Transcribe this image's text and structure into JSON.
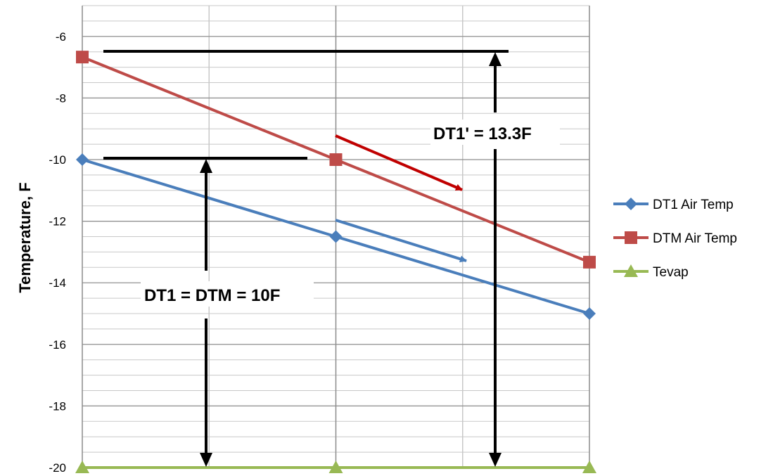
{
  "chart_data": {
    "type": "line",
    "ylabel": "Temperature, F",
    "xlabel": "",
    "title": "",
    "ylim": [
      -20,
      -5
    ],
    "y_ticks": [
      -6,
      -8,
      -10,
      -12,
      -14,
      -16,
      -18,
      -20
    ],
    "x": [
      0,
      1,
      2
    ],
    "grid": true,
    "legend_position": "right",
    "series": [
      {
        "name": "DT1 Air Temp",
        "values": [
          -10,
          -12.5,
          -15
        ],
        "color": "#4a7ebb",
        "marker": "diamond"
      },
      {
        "name": "DTM Air Temp",
        "values": [
          -6.67,
          -10,
          -13.33
        ],
        "color": "#be4b48",
        "marker": "square"
      },
      {
        "name": "Tevap",
        "values": [
          -20,
          -20,
          -20
        ],
        "color": "#98b954",
        "marker": "triangle"
      }
    ],
    "annotations": [
      {
        "text": "DT1 = DTM = 10F"
      },
      {
        "text": "DT1' = 13.3F"
      }
    ]
  }
}
